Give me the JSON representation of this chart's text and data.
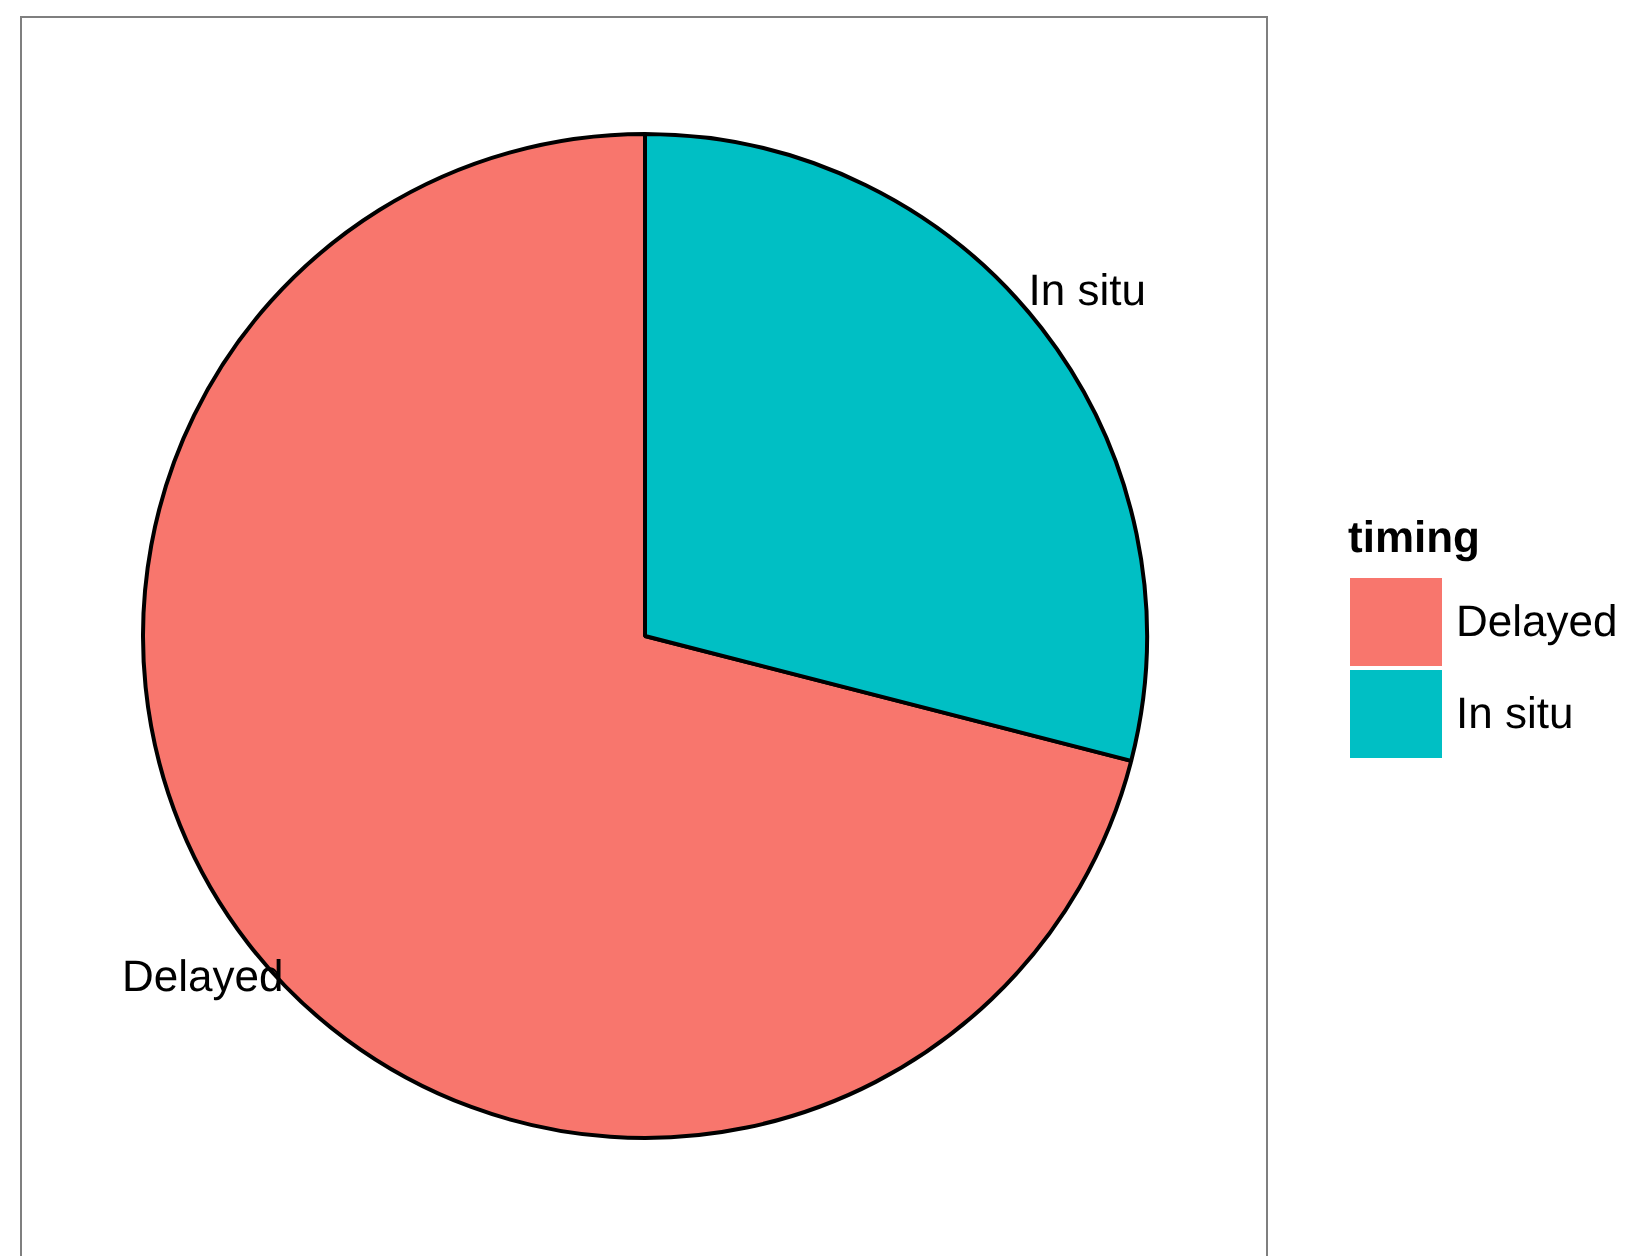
{
  "chart_data": {
    "type": "pie",
    "legend_title": "timing",
    "categories": [
      "Delayed",
      "In situ"
    ],
    "values": [
      71,
      29
    ],
    "colors": [
      "#f8766d",
      "#00bfc4"
    ],
    "legend": "right",
    "annotations": [
      {
        "text": "Delayed",
        "x": "Delayed"
      },
      {
        "text": "In situ",
        "x": "In situ"
      }
    ]
  }
}
